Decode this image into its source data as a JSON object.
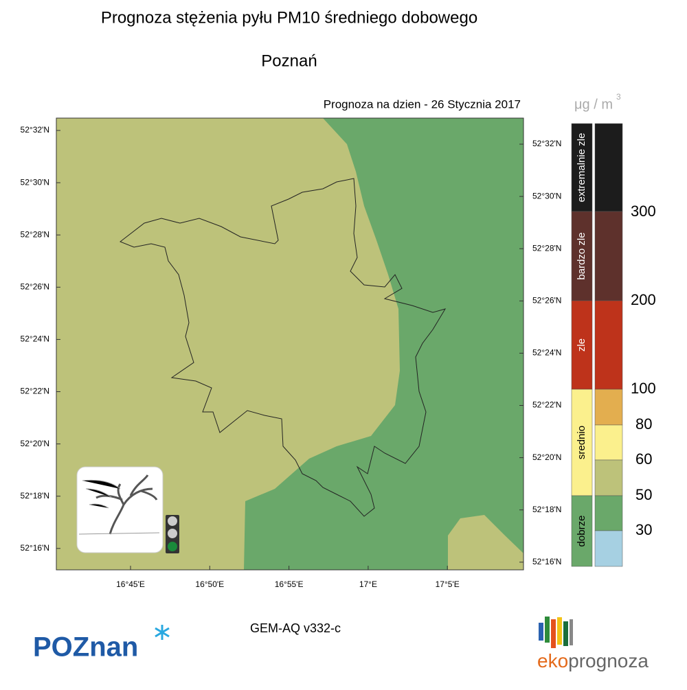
{
  "header": {
    "title": "Prognoza stężenia pyłu PM10 średniego dobowego",
    "subtitle": "Poznań",
    "date_label": "Prognoza na dzien -  26 Stycznia 2017"
  },
  "map": {
    "lat_labels_left": [
      "52°32'N",
      "52°30'N",
      "52°28'N",
      "52°26'N",
      "52°24'N",
      "52°22'N",
      "52°20'N",
      "52°18'N",
      "52°16'N"
    ],
    "lat_labels_right": [
      "52°32'N",
      "52°30'N",
      "52°28'N",
      "52°26'N",
      "52°24'N",
      "52°22'N",
      "52°20'N",
      "52°18'N",
      "52°16'N"
    ],
    "lon_labels": [
      "16°45'E",
      "16°50'E",
      "16°55'E",
      "17°E",
      "17°5'E"
    ]
  },
  "legend": {
    "unit": "μg / m",
    "unit_exp": "3",
    "categories": [
      {
        "name": "extremalnie zle",
        "color": "#1c1c1c"
      },
      {
        "name": "bardzo zle",
        "color": "#5e312c"
      },
      {
        "name": "zle",
        "color": "#be331b"
      },
      {
        "name": "srednio",
        "color": "#fbf08d"
      },
      {
        "name": "dobrze",
        "color": "#6aa86a"
      }
    ],
    "scale_colors": [
      "#1c1c1c",
      "#5e312c",
      "#be331b",
      "#e3ae4f",
      "#fbf08d",
      "#bdc27a",
      "#6aa86a",
      "#a6d0e2"
    ],
    "thresholds": [
      "300",
      "200",
      "100",
      "80",
      "60",
      "50",
      "30"
    ]
  },
  "footer": {
    "model": "GEM-AQ v332-c",
    "city_logo": "POZnan",
    "eko_prefix": "eko",
    "eko_rest": "prognoza"
  }
}
